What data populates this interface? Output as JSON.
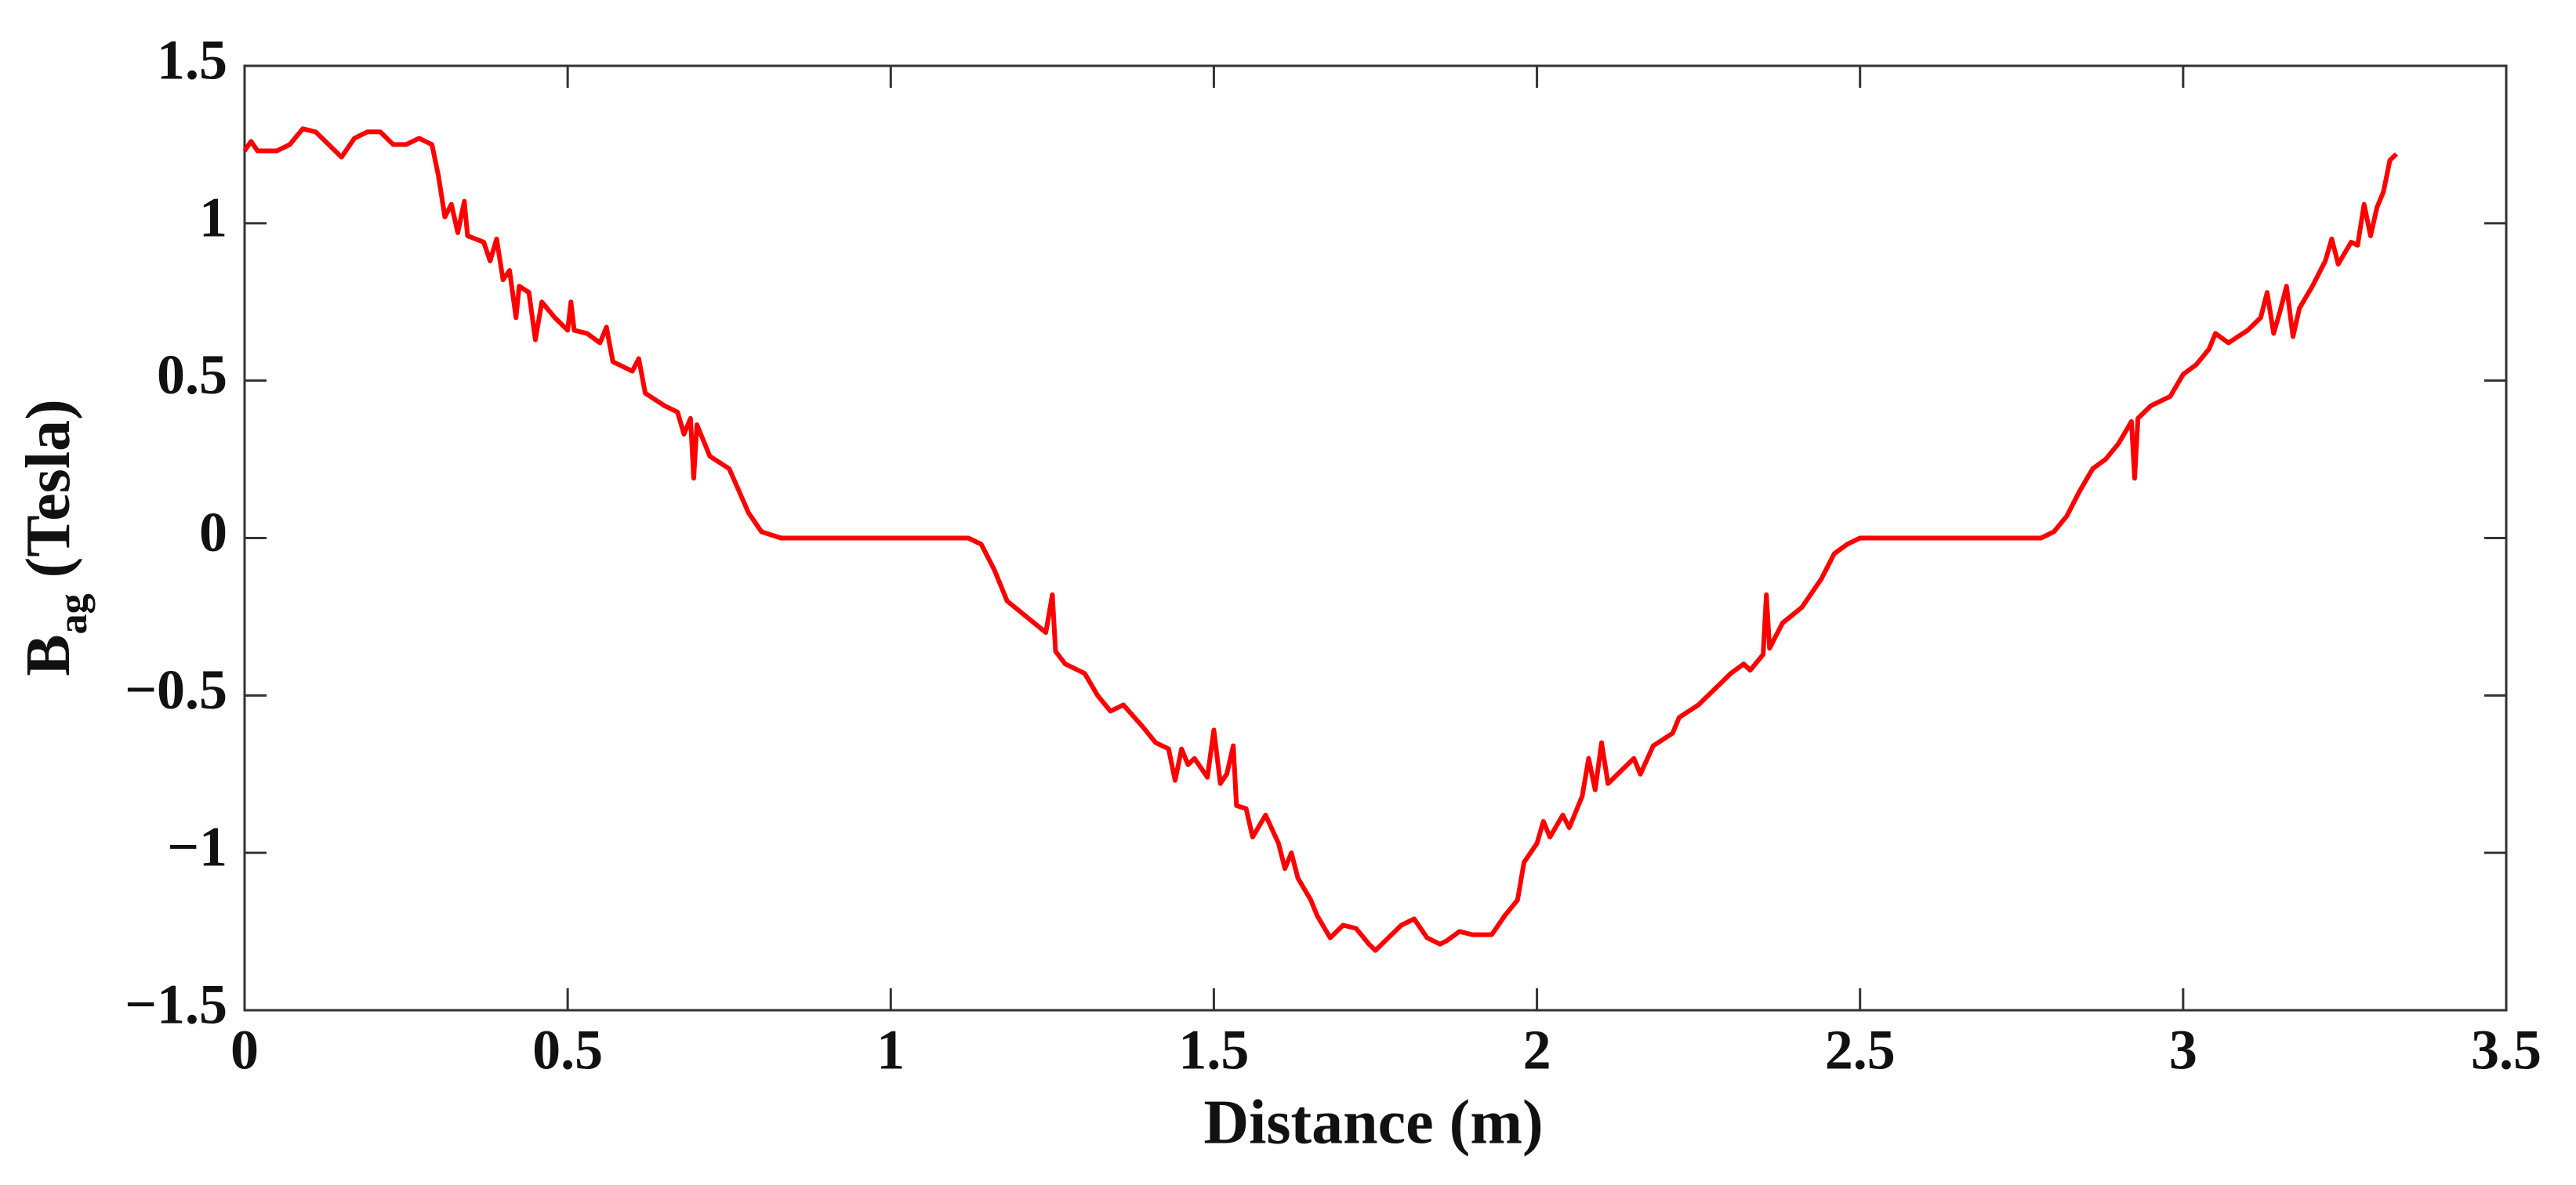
{
  "chart_data": {
    "type": "line",
    "x_label": "Distance (m)",
    "y_label": {
      "main": "B",
      "sub": "ag",
      "unit": "(Tesla)"
    },
    "color": "#ff0000",
    "xlim": [
      0,
      3.5
    ],
    "xticks": [
      0,
      0.5,
      1,
      1.5,
      2,
      2.5,
      3,
      3.5
    ],
    "ylim": [
      -1.5,
      1.5
    ],
    "yticks": [
      {
        "value": -1.5,
        "label": "−1.5"
      },
      {
        "value": -1,
        "label": "−1"
      },
      {
        "value": -0.5,
        "label": "−0.5"
      },
      0,
      0.5,
      1,
      1.5
    ],
    "x": [
      0,
      0.01,
      0.02,
      0.05,
      0.07,
      0.09,
      0.11,
      0.13,
      0.15,
      0.17,
      0.19,
      0.21,
      0.23,
      0.25,
      0.27,
      0.29,
      0.3,
      0.31,
      0.32,
      0.33,
      0.34,
      0.345,
      0.37,
      0.38,
      0.39,
      0.4,
      0.41,
      0.42,
      0.425,
      0.44,
      0.45,
      0.46,
      0.48,
      0.5,
      0.505,
      0.51,
      0.53,
      0.55,
      0.56,
      0.57,
      0.6,
      0.61,
      0.62,
      0.65,
      0.67,
      0.68,
      0.69,
      0.695,
      0.7,
      0.72,
      0.75,
      0.78,
      0.8,
      0.83,
      1.0,
      1.12,
      1.14,
      1.16,
      1.18,
      1.21,
      1.24,
      1.25,
      1.255,
      1.27,
      1.3,
      1.32,
      1.34,
      1.36,
      1.39,
      1.41,
      1.43,
      1.44,
      1.45,
      1.46,
      1.47,
      1.49,
      1.5,
      1.51,
      1.52,
      1.53,
      1.535,
      1.55,
      1.56,
      1.58,
      1.6,
      1.61,
      1.62,
      1.63,
      1.65,
      1.66,
      1.68,
      1.7,
      1.72,
      1.74,
      1.75,
      1.77,
      1.79,
      1.81,
      1.83,
      1.85,
      1.86,
      1.88,
      1.9,
      1.93,
      1.95,
      1.97,
      1.98,
      2.0,
      2.01,
      2.02,
      2.04,
      2.05,
      2.07,
      2.08,
      2.09,
      2.1,
      2.11,
      2.13,
      2.15,
      2.16,
      2.18,
      2.21,
      2.22,
      2.25,
      2.27,
      2.28,
      2.3,
      2.32,
      2.33,
      2.35,
      2.355,
      2.36,
      2.38,
      2.41,
      2.44,
      2.46,
      2.48,
      2.5,
      2.52,
      2.78,
      2.8,
      2.82,
      2.84,
      2.86,
      2.88,
      2.9,
      2.92,
      2.925,
      2.93,
      2.95,
      2.98,
      3.0,
      3.02,
      3.04,
      3.05,
      3.07,
      3.1,
      3.12,
      3.13,
      3.14,
      3.15,
      3.16,
      3.17,
      3.18,
      3.2,
      3.22,
      3.23,
      3.24,
      3.26,
      3.27,
      3.28,
      3.29,
      3.3,
      3.31,
      3.32,
      3.33
    ],
    "values": [
      1.23,
      1.26,
      1.23,
      1.23,
      1.25,
      1.3,
      1.29,
      1.25,
      1.21,
      1.27,
      1.29,
      1.29,
      1.25,
      1.25,
      1.27,
      1.25,
      1.15,
      1.02,
      1.06,
      0.97,
      1.07,
      0.96,
      0.94,
      0.88,
      0.95,
      0.82,
      0.85,
      0.7,
      0.8,
      0.78,
      0.63,
      0.75,
      0.7,
      0.66,
      0.75,
      0.66,
      0.65,
      0.62,
      0.67,
      0.56,
      0.53,
      0.57,
      0.46,
      0.42,
      0.4,
      0.33,
      0.38,
      0.19,
      0.36,
      0.26,
      0.22,
      0.08,
      0.02,
      0,
      0,
      0,
      -0.02,
      -0.1,
      -0.2,
      -0.25,
      -0.3,
      -0.18,
      -0.36,
      -0.4,
      -0.43,
      -0.5,
      -0.55,
      -0.53,
      -0.6,
      -0.65,
      -0.67,
      -0.77,
      -0.67,
      -0.72,
      -0.7,
      -0.76,
      -0.61,
      -0.78,
      -0.75,
      -0.66,
      -0.85,
      -0.86,
      -0.95,
      -0.88,
      -0.97,
      -1.05,
      -1.0,
      -1.08,
      -1.15,
      -1.2,
      -1.27,
      -1.23,
      -1.24,
      -1.29,
      -1.31,
      -1.27,
      -1.23,
      -1.21,
      -1.27,
      -1.29,
      -1.28,
      -1.25,
      -1.26,
      -1.26,
      -1.2,
      -1.15,
      -1.03,
      -0.97,
      -0.9,
      -0.95,
      -0.88,
      -0.92,
      -0.82,
      -0.7,
      -0.8,
      -0.65,
      -0.78,
      -0.74,
      -0.7,
      -0.75,
      -0.66,
      -0.62,
      -0.57,
      -0.53,
      -0.49,
      -0.47,
      -0.43,
      -0.4,
      -0.42,
      -0.37,
      -0.18,
      -0.35,
      -0.27,
      -0.22,
      -0.13,
      -0.05,
      -0.02,
      0,
      0,
      0,
      0.02,
      0.07,
      0.15,
      0.22,
      0.25,
      0.3,
      0.37,
      0.19,
      0.38,
      0.42,
      0.45,
      0.52,
      0.55,
      0.6,
      0.65,
      0.62,
      0.66,
      0.7,
      0.78,
      0.65,
      0.72,
      0.8,
      0.64,
      0.73,
      0.8,
      0.88,
      0.95,
      0.87,
      0.94,
      0.93,
      1.06,
      0.96,
      1.05,
      1.1,
      1.2,
      1.22
    ]
  }
}
